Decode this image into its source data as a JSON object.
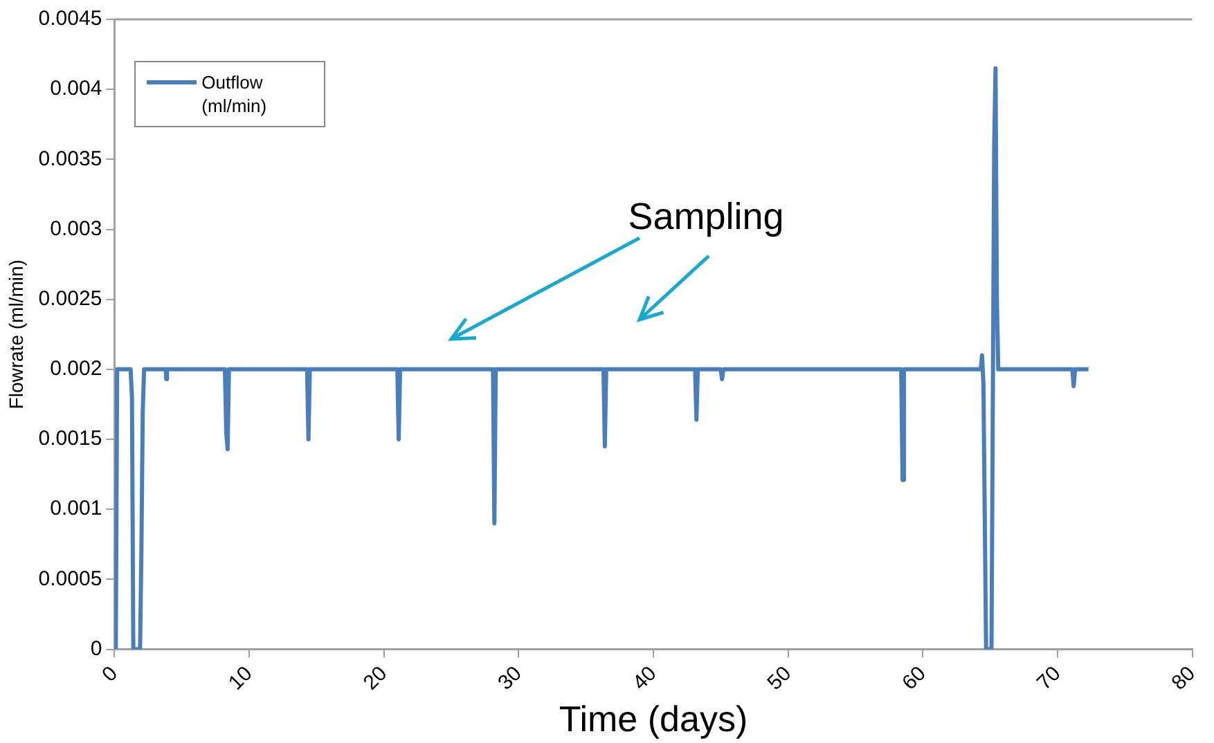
{
  "chart_data": {
    "type": "line",
    "xlabel": "Time (days)",
    "ylabel": "Flowrate (ml/min)",
    "annotations": [
      "Sampling"
    ],
    "xlim": [
      0,
      80
    ],
    "xticks": [
      0,
      10,
      20,
      30,
      40,
      50,
      60,
      70,
      80
    ],
    "ylim": [
      0,
      0.0045
    ],
    "yticks": [
      0,
      0.0005,
      0.001,
      0.0015,
      0.002,
      0.0025,
      0.003,
      0.0035,
      0.004,
      0.0045
    ],
    "grid": false,
    "legend": "top left",
    "marker": "none",
    "line_style": "solid",
    "series": [
      {
        "name": "Outflow (ml/min)",
        "color": "#4a7ebb",
        "x": [
          0.1,
          0.2,
          1.2,
          1.3,
          1.4,
          1.9,
          2.0,
          2.1,
          2.2,
          3.8,
          3.85,
          3.9,
          8.2,
          8.3,
          8.4,
          8.5,
          14.3,
          14.4,
          14.5,
          21.0,
          21.1,
          21.2,
          28.1,
          28.2,
          28.3,
          36.3,
          36.4,
          36.5,
          43.1,
          43.2,
          43.3,
          45.0,
          45.1,
          45.2,
          58.4,
          58.5,
          58.6,
          64.3,
          64.4,
          64.5,
          64.7,
          65.1,
          65.3,
          65.4,
          65.5,
          65.6,
          71.1,
          71.2,
          71.3,
          72.3
        ],
        "values": [
          0,
          0.002,
          0.002,
          0.0018,
          0,
          0,
          0.0007,
          0.0017,
          0.002,
          0.002,
          0.00193,
          0.002,
          0.002,
          0.00155,
          0.00143,
          0.002,
          0.002,
          0.0015,
          0.002,
          0.002,
          0.0015,
          0.002,
          0.002,
          0.0009,
          0.002,
          0.002,
          0.00145,
          0.002,
          0.002,
          0.00164,
          0.002,
          0.002,
          0.00193,
          0.002,
          0.002,
          0.00121,
          0.002,
          0.002,
          0.0021,
          0.0019,
          0,
          0,
          0.0036,
          0.00415,
          0.0025,
          0.002,
          0.002,
          0.00188,
          0.002,
          0.002
        ]
      }
    ]
  }
}
